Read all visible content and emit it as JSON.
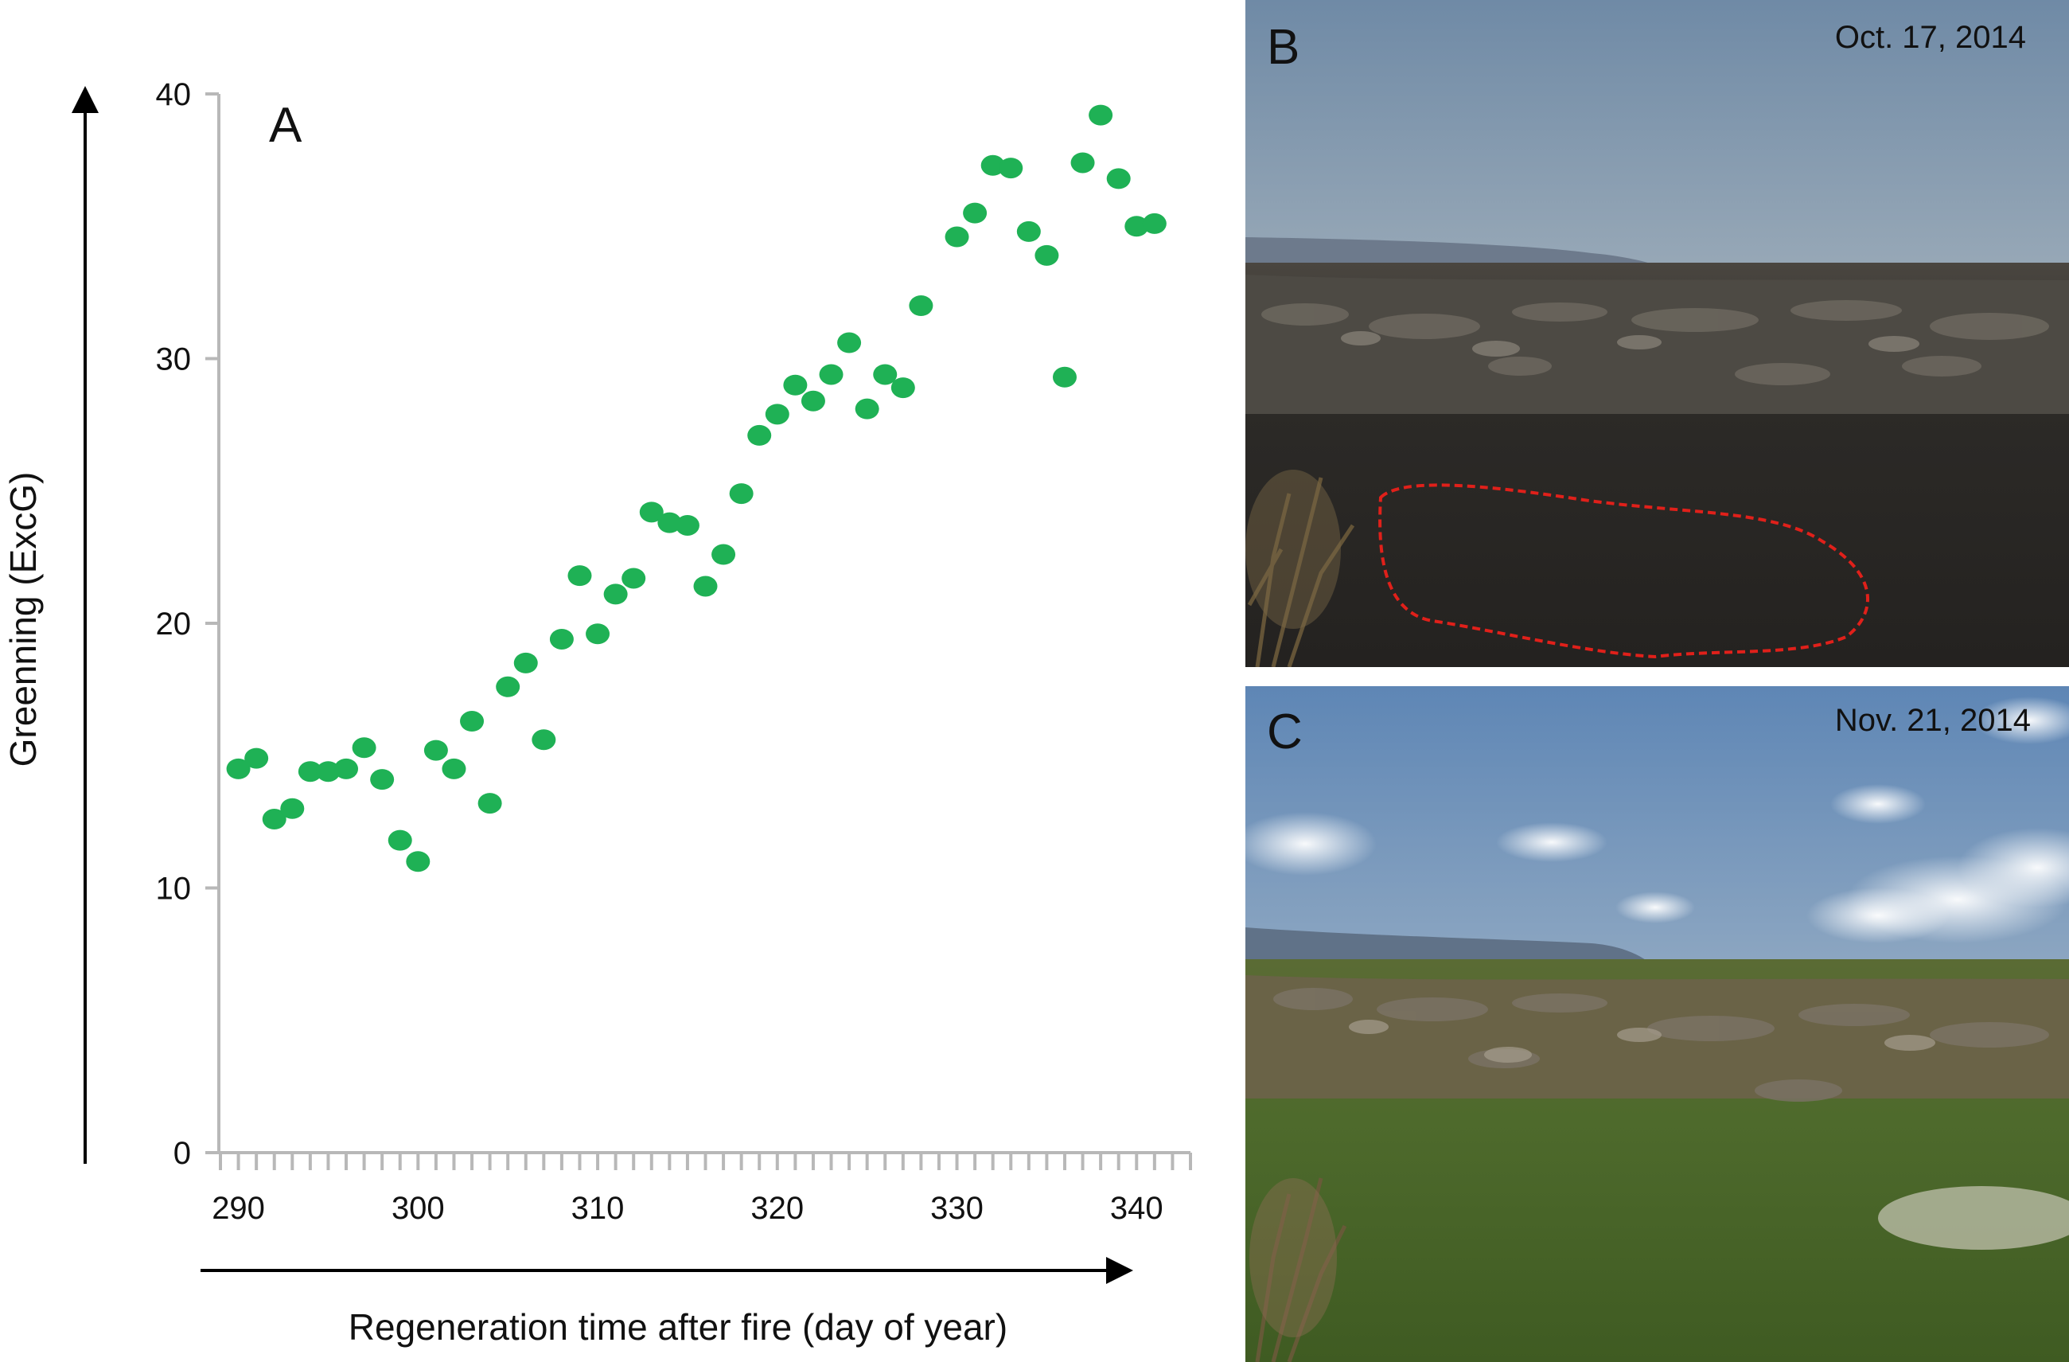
{
  "chart_data": {
    "type": "scatter",
    "panel_label": "A",
    "xlabel": "Regeneration time after fire (day of year)",
    "ylabel": "Greenning (ExcG)",
    "xlim": [
      289,
      343
    ],
    "ylim": [
      0,
      40
    ],
    "x_ticks": [
      290,
      300,
      310,
      320,
      330,
      340
    ],
    "y_ticks": [
      0,
      10,
      20,
      30,
      40
    ],
    "grid": false,
    "legend": "none",
    "marker_color": "#1fb155",
    "series": [
      {
        "x": [
          290,
          291,
          292,
          293,
          294,
          295,
          296,
          297,
          298,
          299,
          300,
          301,
          302,
          303,
          304,
          305,
          306,
          307,
          308,
          309,
          310,
          311,
          312,
          313,
          314,
          315,
          316,
          317,
          318,
          319,
          320,
          321,
          322,
          323,
          324,
          325,
          326,
          327,
          328,
          330,
          331,
          332,
          333,
          334,
          335,
          336,
          337,
          338,
          339,
          340,
          341
        ],
        "values": [
          14.5,
          14.9,
          12.6,
          13.0,
          14.4,
          14.4,
          14.5,
          15.3,
          14.1,
          11.8,
          11.0,
          15.2,
          14.5,
          16.3,
          13.2,
          17.6,
          18.5,
          15.6,
          19.4,
          21.8,
          19.6,
          21.1,
          21.7,
          24.2,
          23.8,
          23.7,
          21.4,
          22.6,
          24.9,
          27.1,
          27.9,
          29.0,
          28.4,
          29.4,
          30.6,
          28.1,
          29.4,
          28.9,
          32.0,
          34.6,
          35.5,
          37.3,
          37.2,
          34.8,
          33.9,
          29.3,
          37.4,
          39.2,
          36.8,
          35.0,
          35.1
        ]
      }
    ]
  },
  "photos": {
    "b": {
      "label": "B",
      "date": "Oct. 17, 2014",
      "sky_color": "#7f98b0",
      "ground_color": "#2a2825",
      "outline_color": "#e0201a"
    },
    "c": {
      "label": "C",
      "date": "Nov. 21, 2014",
      "sky_color": "#6f95be",
      "ground_color": "#55692d"
    }
  }
}
